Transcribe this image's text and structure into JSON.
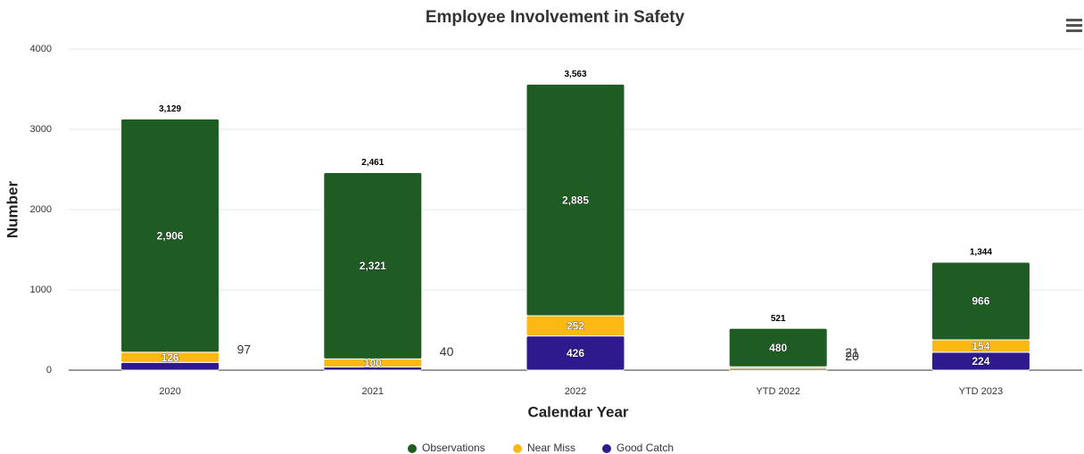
{
  "chart_data": {
    "type": "stacked_bar",
    "title": "Employee Involvement in Safety",
    "x_label": "Calendar Year",
    "y_label": "Number",
    "categories": [
      "2020",
      "2021",
      "2022",
      "YTD 2022",
      "YTD 2023"
    ],
    "series": [
      {
        "name": "Good Catch",
        "color": "#2e1a8c",
        "values": [
          97,
          40,
          426,
          21,
          224
        ]
      },
      {
        "name": "Near Miss",
        "color": "#fdb913",
        "values": [
          126,
          100,
          252,
          20,
          154
        ]
      },
      {
        "name": "Observations",
        "color": "#1e5c23",
        "values": [
          2906,
          2321,
          2885,
          480,
          966
        ],
        "value_labels": [
          "2,906",
          "2,321",
          "2,885",
          "480",
          "966"
        ]
      }
    ],
    "totals": {
      "values": [
        3129,
        2461,
        3563,
        521,
        1344
      ],
      "value_labels": [
        "3,129",
        "2,461",
        "3,563",
        "521",
        "1,344"
      ]
    },
    "ylim": [
      0,
      4000
    ],
    "yticks": [
      0,
      1000,
      2000,
      3000,
      4000
    ],
    "grid": true
  }
}
